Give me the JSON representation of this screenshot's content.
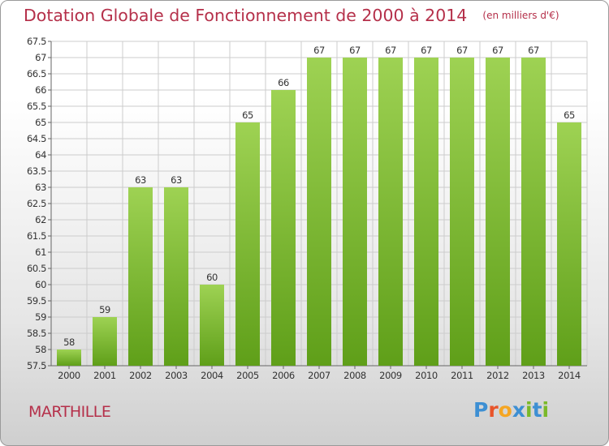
{
  "header": {
    "title": "Dotation Globale de Fonctionnement de 2000 à 2014",
    "unit": "(en milliers d'€)"
  },
  "commune": "MARTHILLE",
  "logo": {
    "text": "Proxiti",
    "letter_colors": [
      "#3d8fd3",
      "#e8542a",
      "#f5a623",
      "#3d8fd3",
      "#7ab929",
      "#3d8fd3",
      "#7ab929"
    ]
  },
  "colors": {
    "accent": "#b5304a",
    "bar_top": "#9ed253",
    "bar_bottom": "#5f9f19",
    "grid": "#cccccc",
    "axis_text": "#333333"
  },
  "chart_data": {
    "type": "bar",
    "categories": [
      "2000",
      "2001",
      "2002",
      "2003",
      "2004",
      "2005",
      "2006",
      "2007",
      "2008",
      "2009",
      "2010",
      "2011",
      "2012",
      "2013",
      "2014"
    ],
    "values": [
      58,
      59,
      63,
      63,
      60,
      65,
      66,
      67,
      67,
      67,
      67,
      67,
      67,
      67,
      65
    ],
    "ylim": [
      57.5,
      67.5
    ],
    "yticks": [
      "57.5",
      "58",
      "58.5",
      "59",
      "59.5",
      "60",
      "60.5",
      "61",
      "61.5",
      "62",
      "62.5",
      "63",
      "63.5",
      "64",
      "64.5",
      "65",
      "65.5",
      "66",
      "66.5",
      "67",
      "67.5"
    ],
    "grid": true,
    "data_labels": true
  }
}
